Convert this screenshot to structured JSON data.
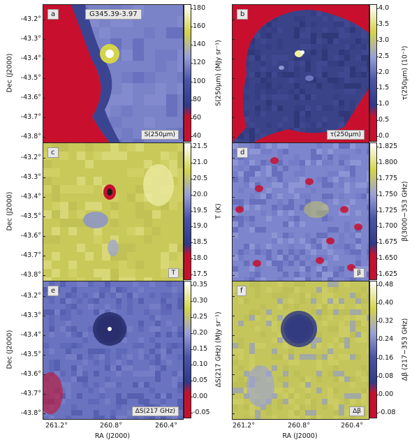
{
  "figure": {
    "source_label": "G345.39-3.97",
    "y_axis_label": "Dec (J2000)",
    "x_axis_label": "RA (J2000)",
    "y_ticks": [
      "-43.2°",
      "-43.3°",
      "-43.4°",
      "-43.5°",
      "-43.6°",
      "-43.7°",
      "-43.8°"
    ],
    "x_ticks": [
      "261.2°",
      "260.8°",
      "260.4°"
    ]
  },
  "panels": [
    {
      "letter": "a",
      "caption": "S(250μm)",
      "colorbar_label": "S(250μm) (MJy sr⁻¹)",
      "ticks": [
        "180",
        "160",
        "140",
        "120",
        "100",
        "80",
        "60",
        "40"
      ]
    },
    {
      "letter": "b",
      "caption": "τ(250μm)",
      "colorbar_label": "τ(250μm) (10⁻³)",
      "ticks": [
        "4.0",
        "3.5",
        "3.0",
        "2.5",
        "2.0",
        "1.5",
        "1.0",
        "0.5",
        "0.0"
      ]
    },
    {
      "letter": "c",
      "caption": "T",
      "colorbar_label": "T (K)",
      "ticks": [
        "21.5",
        "21.0",
        "20.5",
        "20.0",
        "19.5",
        "19.0",
        "18.5",
        "18.0",
        "17.5"
      ]
    },
    {
      "letter": "d",
      "caption": "β",
      "colorbar_label": "β(3000−353 GHz)",
      "ticks": [
        "1.825",
        "1.800",
        "1.775",
        "1.750",
        "1.725",
        "1.700",
        "1.675",
        "1.650",
        "1.625"
      ]
    },
    {
      "letter": "e",
      "caption": "ΔS(217 GHz)",
      "colorbar_label": "ΔS(217 GHz) (MJy sr⁻¹)",
      "ticks": [
        "0.35",
        "0.30",
        "0.25",
        "0.20",
        "0.15",
        "0.10",
        "0.05",
        "0.00",
        "-0.05"
      ]
    },
    {
      "letter": "f",
      "caption": "Δβ",
      "colorbar_label": "Δβ (217−353 GHz)",
      "ticks": [
        "0.48",
        "0.40",
        "0.32",
        "0.24",
        "0.16",
        "0.08",
        "0.00",
        "-0.08"
      ]
    }
  ],
  "colors": {
    "low": "#c8102e",
    "mid": "#4b55a8",
    "high": "#d4d44a",
    "top": "#ffffff"
  }
}
